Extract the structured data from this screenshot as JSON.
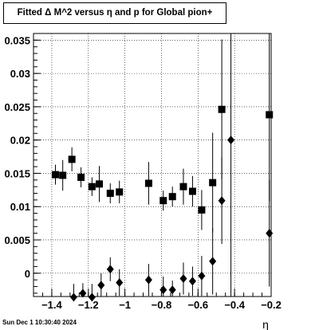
{
  "chart_data": {
    "type": "scatter",
    "title": "Fitted Δ M^2 versus η and p for Global pion+",
    "xlabel": "η",
    "ylabel": "",
    "xlim": [
      -1.5,
      -0.2
    ],
    "ylim": [
      -0.0035,
      0.036
    ],
    "xticks": [
      "-1.4",
      "-1.2",
      "-1",
      "-0.8",
      "-0.6",
      "-0.4",
      "-0.2"
    ],
    "yticks": [
      "0",
      "0.005",
      "0.01",
      "0.015",
      "0.02",
      "0.025",
      "0.03",
      "0.035"
    ],
    "grid": true,
    "series": [
      {
        "marker": "square",
        "points": [
          {
            "x": -1.38,
            "y": 0.0148,
            "err": 0.0015
          },
          {
            "x": -1.34,
            "y": 0.0147,
            "err": 0.0023
          },
          {
            "x": -1.29,
            "y": 0.0171,
            "err": 0.0018
          },
          {
            "x": -1.24,
            "y": 0.0144,
            "err": 0.0015
          },
          {
            "x": -1.18,
            "y": 0.013,
            "err": 0.0014
          },
          {
            "x": -1.14,
            "y": 0.0134,
            "err": 0.0027
          },
          {
            "x": -1.08,
            "y": 0.012,
            "err": 0.0015
          },
          {
            "x": -1.03,
            "y": 0.0122,
            "err": 0.0017
          },
          {
            "x": -0.87,
            "y": 0.0135,
            "err": 0.0032
          },
          {
            "x": -0.79,
            "y": 0.0109,
            "err": 0.0015
          },
          {
            "x": -0.74,
            "y": 0.0115,
            "err": 0.0015
          },
          {
            "x": -0.68,
            "y": 0.013,
            "err": 0.0027
          },
          {
            "x": -0.63,
            "y": 0.0123,
            "err": 0.0023
          },
          {
            "x": -0.58,
            "y": 0.0095,
            "err": 0.003
          },
          {
            "x": -0.52,
            "y": 0.0136,
            "err": 0.0075
          },
          {
            "x": -0.47,
            "y": 0.0246,
            "err": 0.0105
          },
          {
            "x": -0.21,
            "y": 0.0238,
            "err": 0.013
          }
        ]
      },
      {
        "marker": "diamond",
        "points": [
          {
            "x": -1.28,
            "y": -0.0036,
            "err": 0.002
          },
          {
            "x": -1.23,
            "y": -0.003,
            "err": 0.0015
          },
          {
            "x": -1.18,
            "y": -0.0036,
            "err": 0.002
          },
          {
            "x": -1.13,
            "y": -0.0018,
            "err": 0.0018
          },
          {
            "x": -1.08,
            "y": 0.0006,
            "err": 0.0018
          },
          {
            "x": -1.03,
            "y": -0.0014,
            "err": 0.002
          },
          {
            "x": -0.87,
            "y": -0.001,
            "err": 0.0024
          },
          {
            "x": -0.79,
            "y": -0.0025,
            "err": 0.002
          },
          {
            "x": -0.74,
            "y": -0.0025,
            "err": 0.0014
          },
          {
            "x": -0.68,
            "y": -0.0008,
            "err": 0.0024
          },
          {
            "x": -0.63,
            "y": -0.0012,
            "err": 0.0022
          },
          {
            "x": -0.58,
            "y": -0.0004,
            "err": 0.003
          },
          {
            "x": -0.52,
            "y": 0.0018,
            "err": 0.005
          },
          {
            "x": -0.47,
            "y": 0.0109,
            "err": 0.0065
          },
          {
            "x": -0.42,
            "y": 0.02,
            "err": 0.025
          },
          {
            "x": -0.21,
            "y": 0.006,
            "err": 0.008
          }
        ]
      }
    ]
  },
  "footer": "Sun Dec  1 10:30:40 2024"
}
